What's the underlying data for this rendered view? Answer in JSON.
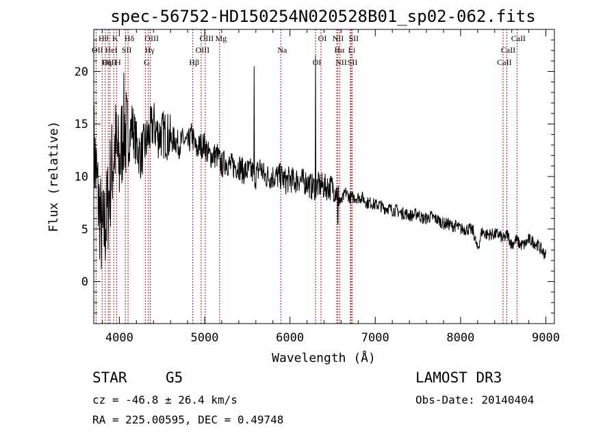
{
  "chart_data": {
    "type": "line",
    "title": "spec-56752-HD150254N020528B01_sp02-062.fits",
    "xlabel": "Wavelength (Å)",
    "ylabel": "Flux (relative)",
    "xlim": [
      3700,
      9100
    ],
    "ylim": [
      -4,
      24
    ],
    "xticks": [
      4000,
      5000,
      6000,
      7000,
      8000,
      9000
    ],
    "yticks": [
      0,
      5,
      10,
      15,
      20
    ],
    "grid": false,
    "series": [
      {
        "name": "spectrum",
        "x": [
          3700,
          3750,
          3800,
          3850,
          3900,
          3950,
          4000,
          4050,
          4100,
          4150,
          4200,
          4250,
          4300,
          4350,
          4400,
          4450,
          4500,
          4550,
          4600,
          4650,
          4700,
          4750,
          4800,
          4850,
          4900,
          4950,
          5000,
          5050,
          5100,
          5150,
          5200,
          5250,
          5300,
          5350,
          5400,
          5450,
          5500,
          5550,
          5600,
          5650,
          5700,
          5750,
          5800,
          5850,
          5900,
          5950,
          6000,
          6050,
          6100,
          6150,
          6200,
          6250,
          6300,
          6350,
          6400,
          6450,
          6500,
          6550,
          6600,
          6650,
          6700,
          6750,
          6800,
          6850,
          6900,
          6950,
          7000,
          7050,
          7100,
          7150,
          7200,
          7250,
          7300,
          7350,
          7400,
          7450,
          7500,
          7550,
          7600,
          7650,
          7700,
          7750,
          7800,
          7850,
          7900,
          7950,
          8000,
          8050,
          8100,
          8150,
          8200,
          8250,
          8300,
          8350,
          8400,
          8450,
          8500,
          8550,
          8600,
          8650,
          8700,
          8750,
          8800,
          8850,
          8900,
          8950,
          9000
        ],
        "y": [
          13,
          8,
          4,
          6,
          10,
          13,
          11,
          15,
          13,
          15,
          13,
          12,
          13,
          14,
          15,
          14,
          14,
          14,
          13.5,
          13.5,
          13,
          13.5,
          13,
          14,
          12.5,
          13,
          13,
          12,
          12,
          12,
          11,
          11.5,
          11,
          11,
          11,
          10.5,
          10.5,
          10.5,
          10,
          11,
          10,
          10,
          10,
          10,
          10,
          9.5,
          9.8,
          9.5,
          9.8,
          9.5,
          9.5,
          9,
          9,
          9.2,
          9,
          9,
          9,
          8.5,
          7.5,
          8.5,
          8,
          8,
          8,
          8,
          7.5,
          7.5,
          7.3,
          7.3,
          7,
          7,
          6.8,
          6.8,
          6.5,
          6.5,
          6.3,
          6.3,
          6.5,
          6,
          6,
          6.2,
          6,
          5.8,
          5.5,
          5.5,
          5.3,
          5.3,
          5,
          5,
          5,
          4.8,
          3,
          4.8,
          4.5,
          4.5,
          4.5,
          4.5,
          4,
          4.5,
          3.5,
          4,
          3.5,
          3.5,
          4,
          3.8,
          3.5,
          3,
          2.5
        ]
      }
    ],
    "emission_lines": [
      {
        "label": "Hθ",
        "x": 3798
      },
      {
        "label": "OII",
        "x": 3727
      },
      {
        "label": "OIII",
        "x": 3869
      },
      {
        "label": "K",
        "x": 3934
      },
      {
        "label": "HeI",
        "x": 3889
      },
      {
        "label": "Hη",
        "x": 3835
      },
      {
        "label": "Hδ",
        "x": 4102
      },
      {
        "label": "SII",
        "x": 4070
      },
      {
        "label": "H",
        "x": 3968
      },
      {
        "label": "OIII",
        "x": 4363
      },
      {
        "label": "Hγ",
        "x": 4340
      },
      {
        "label": "G",
        "x": 4304
      },
      {
        "label": "OIII",
        "x": 5007
      },
      {
        "label": "OIII",
        "x": 4959
      },
      {
        "label": "Hβ",
        "x": 4861
      },
      {
        "label": "Mg",
        "x": 5175
      },
      {
        "label": "Na",
        "x": 5893
      },
      {
        "label": "OI",
        "x": 6300
      },
      {
        "label": "OI",
        "x": 6364
      },
      {
        "label": "Hα",
        "x": 6563
      },
      {
        "label": "SII",
        "x": 6717
      },
      {
        "label": "NII",
        "x": 6548
      },
      {
        "label": "Li",
        "x": 6708
      },
      {
        "label": "NII",
        "x": 6584
      },
      {
        "label": "SII",
        "x": 6731
      },
      {
        "label": "CaII",
        "x": 8542
      },
      {
        "label": "CaII",
        "x": 8498
      },
      {
        "label": "CaII",
        "x": 8662
      }
    ]
  },
  "info": {
    "object_class": "STAR",
    "subclass": "G5",
    "survey": "LAMOST DR3",
    "redshift": "cz = -46.8 ± 26.4 km/s",
    "obs_date": "Obs-Date: 20140404",
    "coords": "RA = 225.00595, DEC =    0.49748"
  }
}
